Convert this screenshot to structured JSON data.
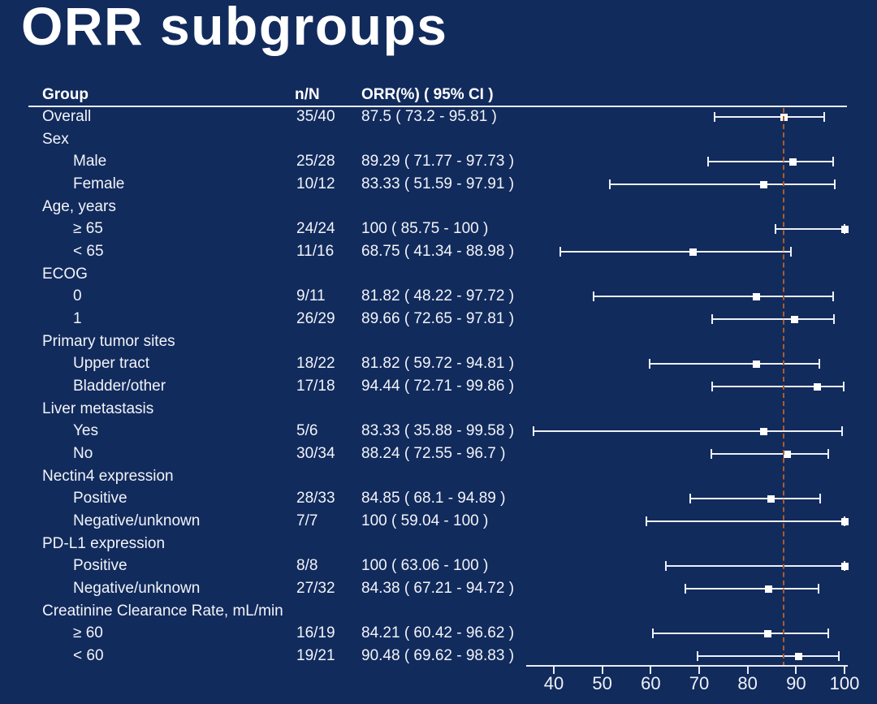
{
  "slide": {
    "title": "ORR subgroups",
    "background_color": "#122B5D",
    "text_color": "#FFFFFF"
  },
  "table": {
    "headers": {
      "group": "Group",
      "n": "n/N",
      "orr": "ORR(%) ( 95% CI )"
    }
  },
  "chart_data": {
    "type": "scatter",
    "variant": "forest-plot",
    "title": "ORR subgroups",
    "xlabel": "",
    "xlim": [
      40,
      100
    ],
    "x_ticks": [
      40,
      50,
      60,
      70,
      80,
      90,
      100
    ],
    "reference_line": 87.5,
    "reference_line_color": "#AE5B28",
    "bar_color": "#EDF1F7",
    "marker_color": "#FFFFFF",
    "marker_shape": "square",
    "rows": [
      {
        "label": "Overall",
        "indent": 0,
        "n": "35/40",
        "orr": "87.5 ( 73.2 - 95.81 )",
        "est": 87.5,
        "lo": 73.2,
        "hi": 95.81
      },
      {
        "label": "Sex",
        "indent": 0,
        "n": "",
        "orr": "",
        "est": null,
        "lo": null,
        "hi": null
      },
      {
        "label": "Male",
        "indent": 1,
        "n": "25/28",
        "orr": "89.29 ( 71.77 - 97.73 )",
        "est": 89.29,
        "lo": 71.77,
        "hi": 97.73
      },
      {
        "label": "Female",
        "indent": 1,
        "n": "10/12",
        "orr": "83.33 ( 51.59 - 97.91 )",
        "est": 83.33,
        "lo": 51.59,
        "hi": 97.91
      },
      {
        "label": "Age, years",
        "indent": 0,
        "n": "",
        "orr": "",
        "est": null,
        "lo": null,
        "hi": null
      },
      {
        "label": "≥ 65",
        "indent": 1,
        "n": "24/24",
        "orr": "100 ( 85.75 - 100 )",
        "est": 100,
        "lo": 85.75,
        "hi": 100
      },
      {
        "label": "< 65",
        "indent": 1,
        "n": "11/16",
        "orr": "68.75 ( 41.34 - 88.98 )",
        "est": 68.75,
        "lo": 41.34,
        "hi": 88.98
      },
      {
        "label": "ECOG",
        "indent": 0,
        "n": "",
        "orr": "",
        "est": null,
        "lo": null,
        "hi": null
      },
      {
        "label": "0",
        "indent": 1,
        "n": "9/11",
        "orr": "81.82 ( 48.22 - 97.72 )",
        "est": 81.82,
        "lo": 48.22,
        "hi": 97.72
      },
      {
        "label": "1",
        "indent": 1,
        "n": "26/29",
        "orr": "89.66 ( 72.65 - 97.81 )",
        "est": 89.66,
        "lo": 72.65,
        "hi": 97.81
      },
      {
        "label": "Primary tumor sites",
        "indent": 0,
        "n": "",
        "orr": "",
        "est": null,
        "lo": null,
        "hi": null
      },
      {
        "label": "Upper tract",
        "indent": 1,
        "n": "18/22",
        "orr": "81.82 ( 59.72 - 94.81 )",
        "est": 81.82,
        "lo": 59.72,
        "hi": 94.81
      },
      {
        "label": "Bladder/other",
        "indent": 1,
        "n": "17/18",
        "orr": "94.44 ( 72.71 - 99.86 )",
        "est": 94.44,
        "lo": 72.71,
        "hi": 99.86
      },
      {
        "label": "Liver metastasis",
        "indent": 0,
        "n": "",
        "orr": "",
        "est": null,
        "lo": null,
        "hi": null
      },
      {
        "label": "Yes",
        "indent": 1,
        "n": "5/6",
        "orr": "83.33 ( 35.88 - 99.58 )",
        "est": 83.33,
        "lo": 35.88,
        "hi": 99.58
      },
      {
        "label": "No",
        "indent": 1,
        "n": "30/34",
        "orr": "88.24 ( 72.55 - 96.7 )",
        "est": 88.24,
        "lo": 72.55,
        "hi": 96.7
      },
      {
        "label": "Nectin4 expression",
        "indent": 0,
        "n": "",
        "orr": "",
        "est": null,
        "lo": null,
        "hi": null
      },
      {
        "label": "Positive",
        "indent": 1,
        "n": "28/33",
        "orr": "84.85 ( 68.1 - 94.89 )",
        "est": 84.85,
        "lo": 68.1,
        "hi": 94.89
      },
      {
        "label": "Negative/unknown",
        "indent": 1,
        "n": "7/7",
        "orr": "100 ( 59.04 - 100 )",
        "est": 100,
        "lo": 59.04,
        "hi": 100
      },
      {
        "label": "PD-L1 expression",
        "indent": 0,
        "n": "",
        "orr": "",
        "est": null,
        "lo": null,
        "hi": null
      },
      {
        "label": "Positive",
        "indent": 1,
        "n": "8/8",
        "orr": "100 ( 63.06 - 100 )",
        "est": 100,
        "lo": 63.06,
        "hi": 100
      },
      {
        "label": "Negative/unknown",
        "indent": 1,
        "n": "27/32",
        "orr": "84.38 ( 67.21 - 94.72 )",
        "est": 84.38,
        "lo": 67.21,
        "hi": 94.72
      },
      {
        "label": "Creatinine Clearance Rate, mL/min",
        "indent": 0,
        "n": "",
        "orr": "",
        "est": null,
        "lo": null,
        "hi": null
      },
      {
        "label": "≥ 60",
        "indent": 1,
        "n": "16/19",
        "orr": "84.21 ( 60.42 - 96.62 )",
        "est": 84.21,
        "lo": 60.42,
        "hi": 96.62
      },
      {
        "label": "< 60",
        "indent": 1,
        "n": "19/21",
        "orr": "90.48 ( 69.62 - 98.83 )",
        "est": 90.48,
        "lo": 69.62,
        "hi": 98.83
      }
    ]
  }
}
